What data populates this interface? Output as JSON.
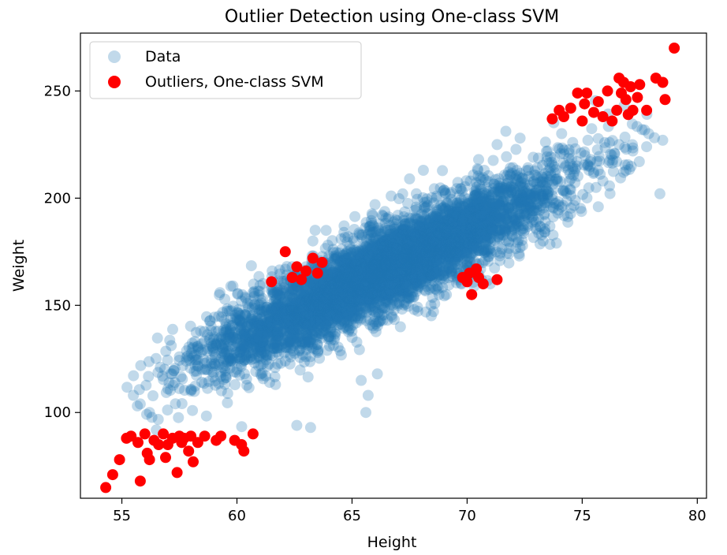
{
  "chart_data": {
    "type": "scatter",
    "title": "Outlier Detection using One-class SVM",
    "xlabel": "Height",
    "ylabel": "Weight",
    "xlim": [
      53.2,
      80.4
    ],
    "ylim": [
      60,
      277
    ],
    "xticks": [
      55,
      60,
      65,
      70,
      75,
      80
    ],
    "yticks": [
      100,
      150,
      200,
      250
    ],
    "grid": false,
    "legend_position": "top-left",
    "colors": {
      "data": "#1f77b4",
      "outliers": "#ff0000"
    },
    "series": [
      {
        "name": "Data",
        "style": "circle, semi-transparent",
        "trend": {
          "slope": 5.15,
          "intercept": -175.3,
          "x_center": 66.4,
          "x_sd": 3.8,
          "y_residual_sd": 10.0,
          "x_min": 55.2,
          "x_max": 78.5
        },
        "points": [
          [
            55.5,
            108
          ],
          [
            55.8,
            104
          ],
          [
            56.2,
            100
          ],
          [
            57.0,
            111
          ],
          [
            57.3,
            114
          ],
          [
            57.5,
            126
          ],
          [
            57.8,
            124
          ],
          [
            58.3,
            131
          ],
          [
            58.6,
            120
          ],
          [
            59.0,
            128
          ],
          [
            59.2,
            138
          ],
          [
            60.2,
            152
          ],
          [
            60.4,
            145
          ],
          [
            60.7,
            156
          ],
          [
            61.3,
            148
          ],
          [
            61.6,
            143
          ],
          [
            62.6,
            94
          ],
          [
            63.2,
            93
          ],
          [
            63.4,
            185
          ],
          [
            63.3,
            180
          ],
          [
            64.7,
            140
          ],
          [
            65.0,
            135
          ],
          [
            65.4,
            115
          ],
          [
            65.7,
            108
          ],
          [
            65.6,
            100
          ],
          [
            66.1,
            118
          ],
          [
            64.8,
            172
          ],
          [
            66.0,
            197
          ],
          [
            66.7,
            201
          ],
          [
            67.2,
            202
          ],
          [
            67.1,
            140
          ],
          [
            67.7,
            148
          ],
          [
            67.5,
            209
          ],
          [
            68.1,
            213
          ],
          [
            69.1,
            155
          ],
          [
            70.5,
            218
          ],
          [
            71.3,
            225
          ],
          [
            71.0,
            160
          ],
          [
            72.3,
            228
          ],
          [
            72.3,
            177
          ],
          [
            73.3,
            180
          ],
          [
            73.5,
            222
          ],
          [
            74.0,
            223
          ],
          [
            74.5,
            204
          ],
          [
            74.7,
            199
          ],
          [
            75.3,
            213
          ],
          [
            75.6,
            205
          ],
          [
            75.7,
            196
          ],
          [
            75.9,
            208
          ],
          [
            76.4,
            221
          ],
          [
            76.6,
            225
          ],
          [
            76.5,
            217
          ],
          [
            76.8,
            212
          ],
          [
            77.2,
            222
          ],
          [
            77.8,
            224
          ],
          [
            77.6,
            232
          ],
          [
            78.5,
            227
          ]
        ]
      },
      {
        "name": "Outliers, One-class SVM",
        "style": "circle, solid",
        "points": [
          [
            54.3,
            65
          ],
          [
            54.6,
            71
          ],
          [
            54.9,
            78
          ],
          [
            55.2,
            88
          ],
          [
            55.4,
            89
          ],
          [
            55.7,
            86
          ],
          [
            55.8,
            68
          ],
          [
            56.0,
            90
          ],
          [
            56.1,
            81
          ],
          [
            56.2,
            78
          ],
          [
            56.4,
            87
          ],
          [
            56.6,
            85
          ],
          [
            56.8,
            90
          ],
          [
            56.9,
            79
          ],
          [
            57.0,
            85
          ],
          [
            57.2,
            88
          ],
          [
            57.4,
            72
          ],
          [
            57.5,
            89
          ],
          [
            57.6,
            86
          ],
          [
            57.7,
            88
          ],
          [
            57.9,
            82
          ],
          [
            58.0,
            89
          ],
          [
            58.1,
            77
          ],
          [
            58.3,
            86
          ],
          [
            58.6,
            89
          ],
          [
            59.1,
            87
          ],
          [
            59.3,
            89
          ],
          [
            59.9,
            87
          ],
          [
            60.2,
            85
          ],
          [
            60.3,
            82
          ],
          [
            60.7,
            90
          ],
          [
            61.5,
            161
          ],
          [
            62.1,
            175
          ],
          [
            62.4,
            163
          ],
          [
            62.6,
            168
          ],
          [
            62.8,
            162
          ],
          [
            63.0,
            166
          ],
          [
            63.3,
            172
          ],
          [
            63.5,
            165
          ],
          [
            63.7,
            170
          ],
          [
            69.8,
            163
          ],
          [
            70.0,
            161
          ],
          [
            70.1,
            165
          ],
          [
            70.2,
            155
          ],
          [
            70.4,
            167
          ],
          [
            70.5,
            163
          ],
          [
            70.7,
            160
          ],
          [
            71.3,
            162
          ],
          [
            73.7,
            237
          ],
          [
            74.0,
            241
          ],
          [
            74.2,
            238
          ],
          [
            74.5,
            242
          ],
          [
            74.8,
            249
          ],
          [
            75.0,
            236
          ],
          [
            75.1,
            244
          ],
          [
            75.2,
            249
          ],
          [
            75.5,
            240
          ],
          [
            75.7,
            245
          ],
          [
            75.9,
            238
          ],
          [
            76.1,
            250
          ],
          [
            76.3,
            236
          ],
          [
            76.5,
            241
          ],
          [
            76.6,
            256
          ],
          [
            76.7,
            249
          ],
          [
            76.8,
            254
          ],
          [
            76.9,
            246
          ],
          [
            77.0,
            239
          ],
          [
            77.1,
            252
          ],
          [
            77.2,
            241
          ],
          [
            77.4,
            247
          ],
          [
            77.5,
            253
          ],
          [
            77.8,
            241
          ],
          [
            78.2,
            256
          ],
          [
            78.5,
            254
          ],
          [
            78.6,
            246
          ],
          [
            79.0,
            270
          ]
        ]
      }
    ]
  }
}
